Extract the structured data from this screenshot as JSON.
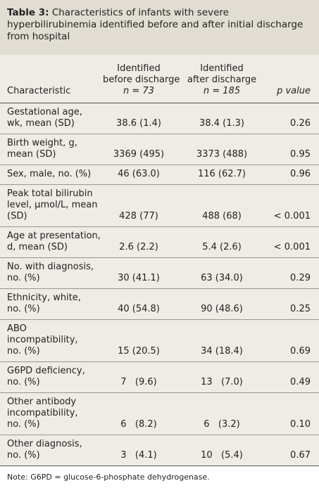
{
  "caption": {
    "label": "Table 3:",
    "text": "Characteristics of infants with severe hyperbilirubinemia identified before and after initial discharge from hospital"
  },
  "header": {
    "characteristic": "Characteristic",
    "before": {
      "lines": [
        "Identified",
        "before discharge"
      ],
      "n": "n = 73"
    },
    "after": {
      "lines": [
        "Identified",
        "after discharge"
      ],
      "n": "n = 185"
    },
    "p": "p value"
  },
  "rows": [
    [
      [
        "Gestational age,",
        "wk, mean (SD)"
      ],
      "38.6 (1.4)",
      "38.4 (1.3)",
      "0.26"
    ],
    [
      [
        "Birth weight, g,",
        "mean (SD)"
      ],
      "3369 (495)",
      "3373 (488)",
      "0.95"
    ],
    [
      [
        "Sex, male, no. (%)"
      ],
      "46 (63.0)",
      "116 (62.7)",
      "0.96"
    ],
    [
      [
        "Peak total bilirubin",
        "level, µmol/L, mean",
        "(SD)"
      ],
      "428 (77)",
      "488 (68)",
      "< 0.001"
    ],
    [
      [
        "Age at presentation,",
        "d, mean (SD)"
      ],
      "2.6 (2.2)",
      "5.4 (2.6)",
      "< 0.001"
    ],
    [
      [
        "No. with diagnosis,",
        "no. (%)"
      ],
      "30 (41.1)",
      "63 (34.0)",
      "0.29"
    ],
    [
      [
        "Ethnicity, white,",
        "no. (%)"
      ],
      "40 (54.8)",
      "90 (48.6)",
      "0.25"
    ],
    [
      [
        "ABO",
        "incompatibility,",
        "no. (%)"
      ],
      "15 (20.5)",
      "34 (18.4)",
      "0.69"
    ],
    [
      [
        "G6PD deficiency,",
        "no. (%)"
      ],
      "7   (9.6)",
      "13   (7.0)",
      "0.49"
    ],
    [
      [
        "Other antibody",
        "incompatibility,",
        "no. (%)"
      ],
      "6   (8.2)",
      "6   (3.2)",
      "0.10"
    ],
    [
      [
        "Other diagnosis,",
        "no. (%)"
      ],
      "3   (4.1)",
      "10   (5.4)",
      "0.67"
    ]
  ],
  "note": "Note: G6PD = glucose-6-phosphate dehydrogenase."
}
